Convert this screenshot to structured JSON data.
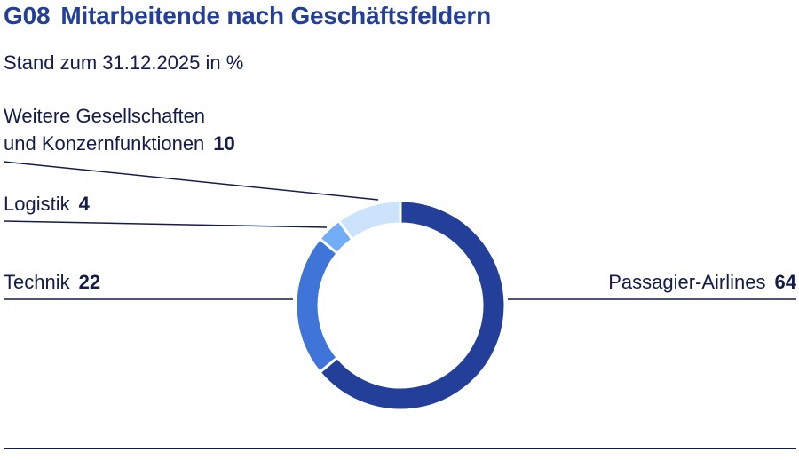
{
  "header": {
    "code": "G08",
    "title": "Mitarbeitende nach Geschäftsfeldern",
    "subtitle": "Stand zum 31.12.2025 in %"
  },
  "chart_data": {
    "type": "pie",
    "variant": "donut",
    "title": "Mitarbeitende nach Geschäftsfeldern",
    "subtitle": "Stand zum 31.12.2025 in %",
    "unit": "%",
    "slices": [
      {
        "label": "Passagier-Airlines",
        "value": 64,
        "color": "#233f99"
      },
      {
        "label": "Technik",
        "value": 22,
        "color": "#3f75d8"
      },
      {
        "label": "Logistik",
        "value": 4,
        "color": "#72aef8"
      },
      {
        "label": "Weitere Gesellschaften und Konzernfunktionen",
        "value": 10,
        "color": "#cce3fc"
      }
    ]
  },
  "labels": {
    "weitere_line1": "Weitere Gesellschaften",
    "weitere_line2": "und Konzernfunktionen",
    "weitere_value": "10",
    "logistik": "Logistik",
    "logistik_value": "4",
    "technik": "Technik",
    "technik_value": "22",
    "passagier": "Passagier-Airlines",
    "passagier_value": "64"
  }
}
